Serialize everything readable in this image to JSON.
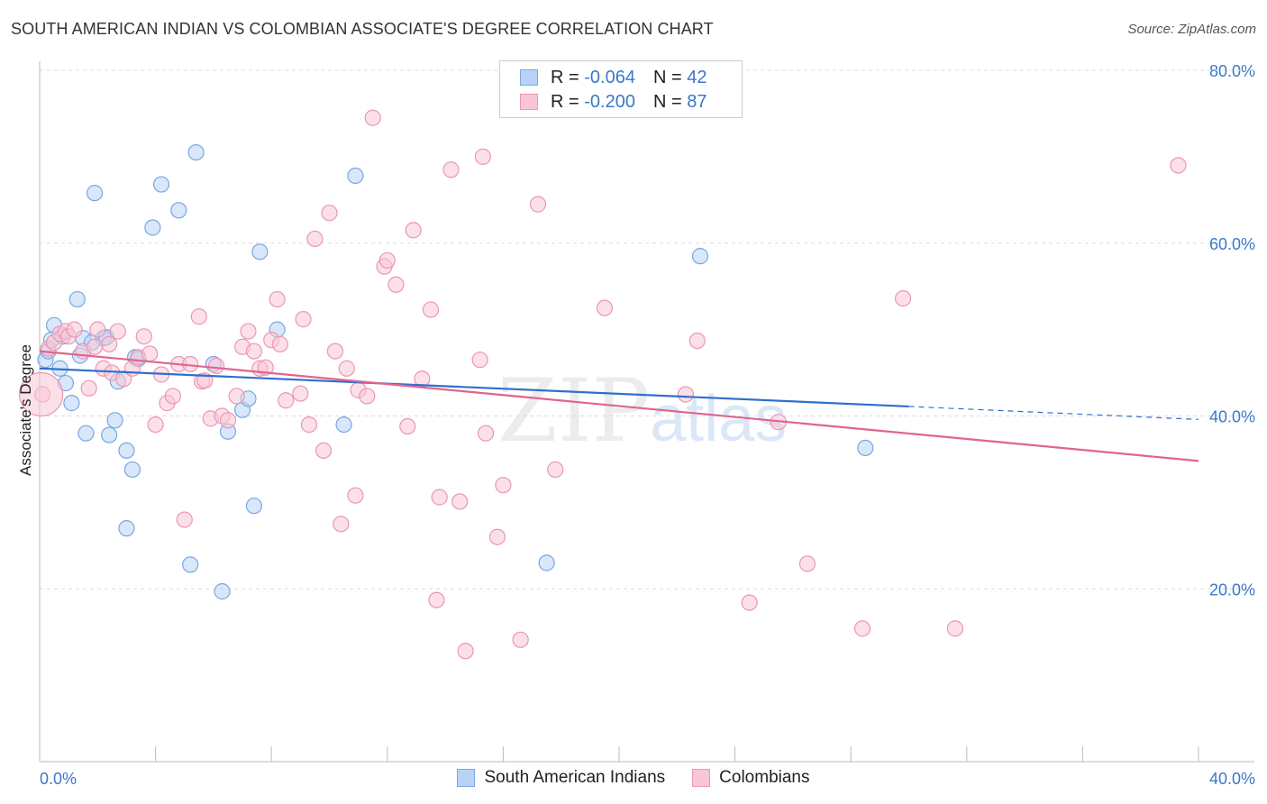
{
  "title": "SOUTH AMERICAN INDIAN VS COLOMBIAN ASSOCIATE'S DEGREE CORRELATION CHART",
  "source": "Source: ZipAtlas.com",
  "watermark_main": "ZIP",
  "watermark_sub": "atlas",
  "legend": {
    "rows": [
      {
        "r_label": "R = ",
        "r_value": "-0.064",
        "n_label": "N = ",
        "n_value": "42"
      },
      {
        "r_label": "R = ",
        "r_value": "-0.200",
        "n_label": "N = ",
        "n_value": "87"
      }
    ]
  },
  "bottom_legend": [
    "South American Indians",
    "Colombians"
  ],
  "colors": {
    "blue_fill": "#b8d3f5",
    "blue_stroke": "#7aa8e0",
    "blue_line": "#2f6fcf",
    "pink_fill": "#f9c6d6",
    "pink_stroke": "#eb96b3",
    "pink_line": "#e0648e",
    "axis_text": "#3a78c9",
    "grid": "#dcdcdc"
  },
  "chart_data": {
    "type": "scatter",
    "title": "SOUTH AMERICAN INDIAN VS COLOMBIAN ASSOCIATE'S DEGREE CORRELATION CHART",
    "xlabel": "",
    "ylabel": "Associate's Degree",
    "xlim": [
      0,
      40
    ],
    "ylim": [
      0,
      80
    ],
    "x_tick_labels": [
      "0.0%",
      "40.0%"
    ],
    "y_ticks": [
      20,
      40,
      60,
      80
    ],
    "y_tick_labels": [
      "20.0%",
      "40.0%",
      "60.0%",
      "80.0%"
    ],
    "grid": true,
    "legend_position": "top-center",
    "series": [
      {
        "name": "South American Indians",
        "r": -0.064,
        "n": 42,
        "trend": {
          "x0": 0,
          "y0": 45.5,
          "x1": 30,
          "y1": 41.1,
          "dashed_to_x": 40,
          "dashed_to_y": 39.6
        },
        "points": [
          [
            0.2,
            46.5
          ],
          [
            0.3,
            47.5
          ],
          [
            0.4,
            48.8
          ],
          [
            0.5,
            50.5
          ],
          [
            0.7,
            45.5
          ],
          [
            0.9,
            43.8
          ],
          [
            1.1,
            41.5
          ],
          [
            1.3,
            53.5
          ],
          [
            1.4,
            47.0
          ],
          [
            1.5,
            49.0
          ],
          [
            1.6,
            38.0
          ],
          [
            1.8,
            48.5
          ],
          [
            1.9,
            65.8
          ],
          [
            2.2,
            49.0
          ],
          [
            2.4,
            37.8
          ],
          [
            2.6,
            39.5
          ],
          [
            2.7,
            44.0
          ],
          [
            3.0,
            36.0
          ],
          [
            3.0,
            27.0
          ],
          [
            3.2,
            33.8
          ],
          [
            3.3,
            46.8
          ],
          [
            3.9,
            61.8
          ],
          [
            4.2,
            66.8
          ],
          [
            4.8,
            63.8
          ],
          [
            5.2,
            22.8
          ],
          [
            5.4,
            70.5
          ],
          [
            6.0,
            46.0
          ],
          [
            6.3,
            19.7
          ],
          [
            6.5,
            38.2
          ],
          [
            7.0,
            40.7
          ],
          [
            7.2,
            42.0
          ],
          [
            7.4,
            29.6
          ],
          [
            7.6,
            59.0
          ],
          [
            8.2,
            50.0
          ],
          [
            10.5,
            39.0
          ],
          [
            10.9,
            67.8
          ],
          [
            17.5,
            23.0
          ],
          [
            22.8,
            58.5
          ],
          [
            28.5,
            36.3
          ],
          [
            0.8,
            49.2
          ],
          [
            3.4,
            46.6
          ],
          [
            2.3,
            49.1
          ]
        ]
      },
      {
        "name": "Colombians",
        "r": -0.2,
        "n": 87,
        "trend": {
          "x0": 0,
          "y0": 47.5,
          "x1": 40,
          "y1": 34.8
        },
        "points": [
          [
            0.1,
            42.5
          ],
          [
            0.3,
            47.8
          ],
          [
            0.5,
            48.5
          ],
          [
            0.7,
            49.5
          ],
          [
            0.9,
            49.8
          ],
          [
            1.0,
            49.2
          ],
          [
            1.2,
            50.0
          ],
          [
            1.5,
            47.5
          ],
          [
            1.7,
            43.2
          ],
          [
            2.0,
            50.0
          ],
          [
            2.2,
            45.5
          ],
          [
            2.4,
            48.3
          ],
          [
            2.5,
            45.0
          ],
          [
            2.7,
            49.8
          ],
          [
            2.9,
            44.3
          ],
          [
            3.2,
            45.5
          ],
          [
            3.4,
            46.8
          ],
          [
            3.6,
            49.2
          ],
          [
            3.8,
            47.2
          ],
          [
            4.0,
            39.0
          ],
          [
            4.2,
            44.8
          ],
          [
            4.4,
            41.5
          ],
          [
            4.6,
            42.3
          ],
          [
            4.8,
            46.0
          ],
          [
            5.0,
            28.0
          ],
          [
            5.2,
            46.0
          ],
          [
            5.5,
            51.5
          ],
          [
            5.6,
            44.0
          ],
          [
            5.9,
            39.7
          ],
          [
            6.1,
            45.8
          ],
          [
            6.3,
            40.0
          ],
          [
            6.5,
            39.5
          ],
          [
            6.8,
            42.3
          ],
          [
            7.0,
            48.0
          ],
          [
            7.2,
            49.8
          ],
          [
            7.4,
            47.5
          ],
          [
            7.6,
            45.5
          ],
          [
            7.8,
            45.6
          ],
          [
            8.0,
            48.8
          ],
          [
            8.2,
            53.5
          ],
          [
            8.3,
            48.3
          ],
          [
            8.5,
            41.8
          ],
          [
            9.0,
            42.6
          ],
          [
            9.1,
            51.2
          ],
          [
            9.3,
            39.0
          ],
          [
            9.5,
            60.5
          ],
          [
            9.8,
            36.0
          ],
          [
            10.0,
            63.5
          ],
          [
            10.2,
            47.5
          ],
          [
            10.4,
            27.5
          ],
          [
            10.6,
            45.5
          ],
          [
            10.9,
            30.8
          ],
          [
            11.0,
            43.0
          ],
          [
            11.3,
            42.3
          ],
          [
            11.5,
            74.5
          ],
          [
            11.9,
            57.3
          ],
          [
            12.0,
            58.0
          ],
          [
            12.3,
            55.2
          ],
          [
            12.7,
            38.8
          ],
          [
            12.9,
            61.5
          ],
          [
            13.2,
            44.3
          ],
          [
            13.5,
            52.3
          ],
          [
            13.7,
            18.7
          ],
          [
            13.8,
            30.6
          ],
          [
            14.2,
            68.5
          ],
          [
            14.5,
            30.1
          ],
          [
            14.7,
            12.8
          ],
          [
            15.2,
            46.5
          ],
          [
            15.3,
            70.0
          ],
          [
            15.4,
            38.0
          ],
          [
            15.8,
            26.0
          ],
          [
            16.0,
            32.0
          ],
          [
            16.6,
            14.1
          ],
          [
            17.2,
            64.5
          ],
          [
            17.8,
            33.8
          ],
          [
            19.5,
            52.5
          ],
          [
            22.3,
            42.5
          ],
          [
            22.7,
            48.7
          ],
          [
            24.5,
            18.4
          ],
          [
            25.5,
            39.3
          ],
          [
            26.5,
            22.9
          ],
          [
            28.4,
            15.4
          ],
          [
            29.8,
            53.6
          ],
          [
            31.6,
            15.4
          ],
          [
            39.3,
            69.0
          ],
          [
            1.9,
            48.0
          ],
          [
            5.7,
            44.1
          ]
        ]
      }
    ]
  }
}
